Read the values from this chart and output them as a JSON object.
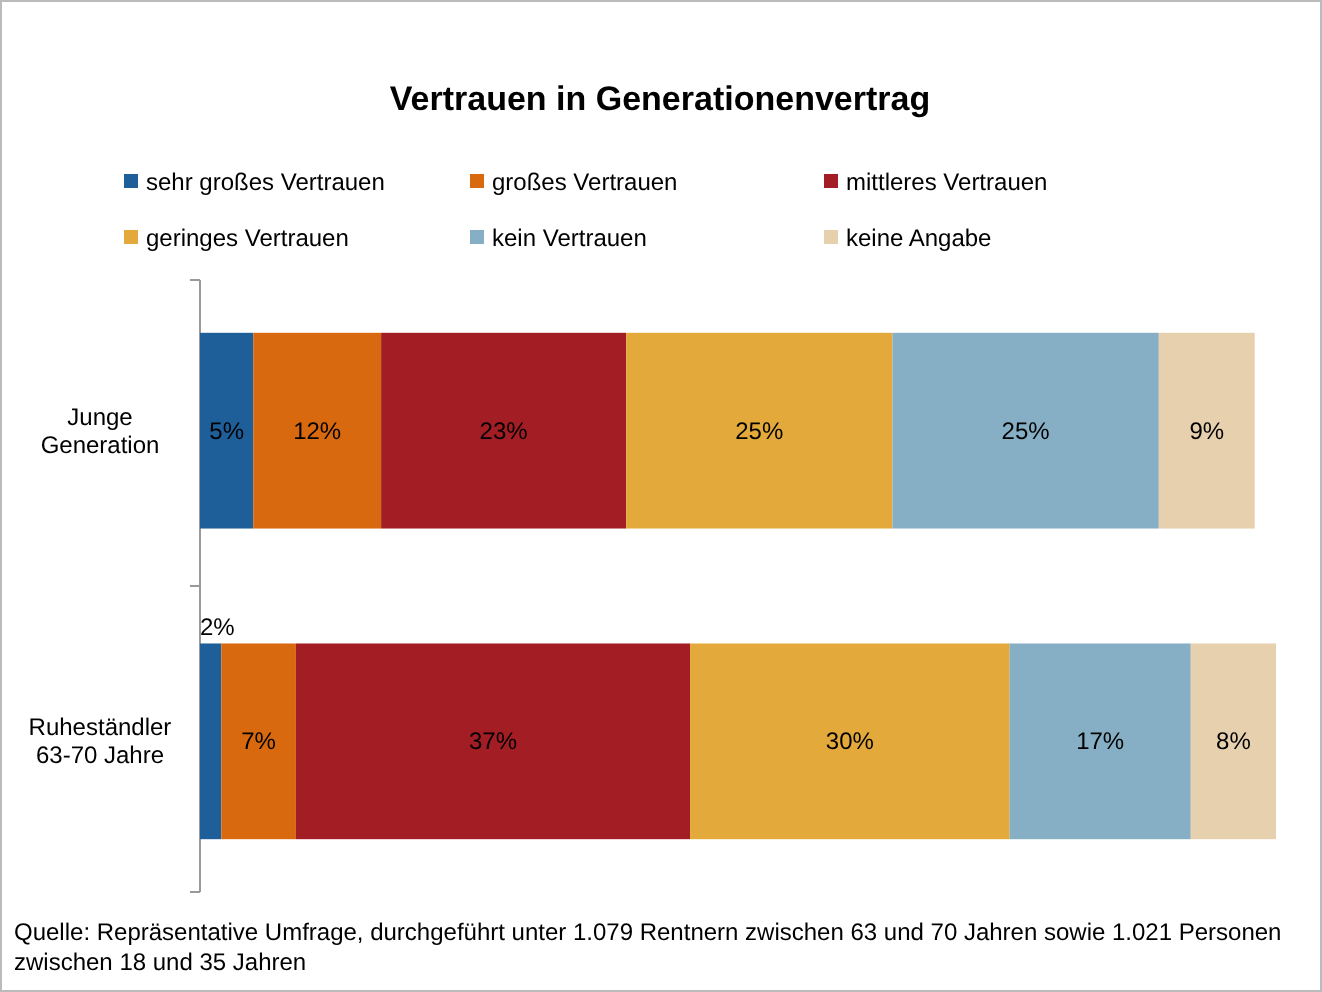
{
  "chart_data": {
    "type": "bar",
    "orientation": "horizontal",
    "stacked": true,
    "title": "Vertrauen in Generationenvertrag",
    "categories": [
      "Junge\nGeneration",
      "Ruheständler\n63-70 Jahre"
    ],
    "series": [
      {
        "name": "sehr großes Vertrauen",
        "color": "#1f5f99",
        "values": [
          5,
          2
        ],
        "value_labels": [
          "5%",
          "2%"
        ]
      },
      {
        "name": "großes Vertrauen",
        "color": "#d9690e",
        "values": [
          12,
          7
        ],
        "value_labels": [
          "12%",
          "7%"
        ]
      },
      {
        "name": "mittleres Vertrauen",
        "color": "#a31d25",
        "values": [
          23,
          37
        ],
        "value_labels": [
          "23%",
          "37%"
        ]
      },
      {
        "name": "geringes Vertrauen",
        "color": "#e3a93a",
        "values": [
          25,
          30
        ],
        "value_labels": [
          "25%",
          "30%"
        ]
      },
      {
        "name": "kein Vertrauen",
        "color": "#86afc5",
        "values": [
          25,
          17
        ],
        "value_labels": [
          "25%",
          "17%"
        ]
      },
      {
        "name": "keine Angabe",
        "color": "#e6d0ad",
        "values": [
          9,
          8
        ],
        "value_labels": [
          "9%",
          "8%"
        ]
      }
    ],
    "legend": "top",
    "tick_labels": "y",
    "annotations": [
      "Quelle: Repräsentative Umfrage, durchgeführt unter 1.079 Rentnern zwischen 63 und 70 Jahren sowie 1.021 Personen zwischen 18 und 35 Jahren"
    ]
  }
}
